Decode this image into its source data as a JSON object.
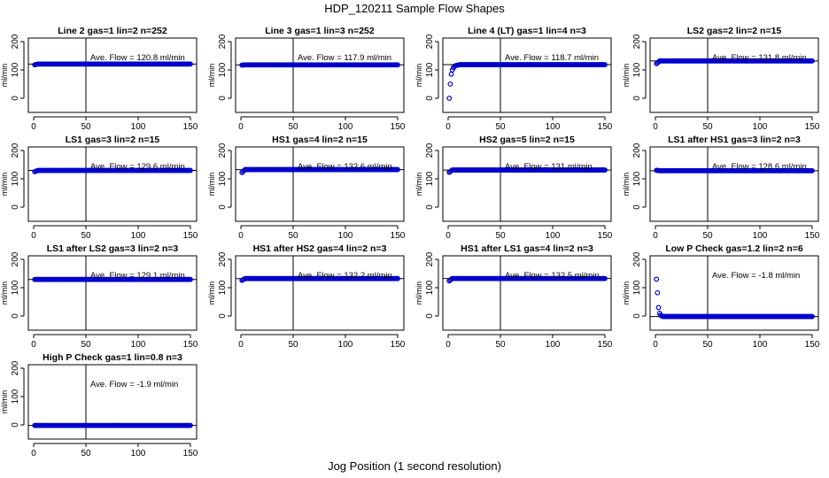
{
  "title": "HDP_120211  Sample Flow Shapes",
  "xlabel": "Jog Position (1 second resolution)",
  "colors": {
    "points": "#0000cc",
    "axis": "#000000"
  },
  "chart_data": [
    {
      "type": "scatter",
      "title": "Line 2 gas=1 lin=2 n=252",
      "ylabel": "ml/min",
      "xlim": [
        0,
        150
      ],
      "ylim": [
        0,
        200
      ],
      "xticks": [
        0,
        50,
        100,
        150
      ],
      "yticks": [
        0,
        100,
        200
      ],
      "grid": false,
      "vline_x": 50,
      "mean": 120.8,
      "annotation": "Ave. Flow =  120.8  ml/min",
      "start": [
        1,
        118
      ],
      "end": [
        150,
        120.8
      ]
    },
    {
      "type": "scatter",
      "title": "Line 3 gas=1 lin=3 n=252",
      "ylabel": "ml/min",
      "xlim": [
        0,
        150
      ],
      "ylim": [
        0,
        200
      ],
      "xticks": [
        0,
        50,
        100,
        150
      ],
      "yticks": [
        0,
        100,
        200
      ],
      "grid": false,
      "vline_x": 50,
      "mean": 117.9,
      "annotation": "Ave. Flow =  117.9  ml/min",
      "start": [
        1,
        117
      ],
      "end": [
        150,
        117.9
      ]
    },
    {
      "type": "scatter",
      "title": "Line 4 (LT) gas=1 lin=4 n=3",
      "ylabel": "ml/min",
      "xlim": [
        0,
        150
      ],
      "ylim": [
        0,
        200
      ],
      "xticks": [
        0,
        50,
        100,
        150
      ],
      "yticks": [
        0,
        100,
        200
      ],
      "grid": false,
      "vline_x": 50,
      "mean": 118.7,
      "annotation": "Ave. Flow =  118.7  ml/min",
      "start": [
        1,
        0
      ],
      "end": [
        150,
        118.7
      ],
      "transient": [
        [
          1,
          0
        ],
        [
          2,
          50
        ],
        [
          3,
          85
        ],
        [
          4,
          100
        ],
        [
          5,
          108
        ],
        [
          6,
          112
        ],
        [
          7,
          115
        ],
        [
          8,
          116
        ],
        [
          9,
          117
        ],
        [
          10,
          117.5
        ]
      ]
    },
    {
      "type": "scatter",
      "title": "LS2 gas=2 lin=2 n=15",
      "ylabel": "ml/min",
      "xlim": [
        0,
        150
      ],
      "ylim": [
        0,
        200
      ],
      "xticks": [
        0,
        50,
        100,
        150
      ],
      "yticks": [
        0,
        100,
        200
      ],
      "grid": false,
      "vline_x": 50,
      "mean": 131.8,
      "annotation": "Ave. Flow =  131.8  ml/min",
      "start": [
        1,
        122
      ],
      "end": [
        150,
        131.8
      ]
    },
    {
      "type": "scatter",
      "title": "LS1 gas=3 lin=2 n=15",
      "ylabel": "ml/min",
      "xlim": [
        0,
        150
      ],
      "ylim": [
        0,
        200
      ],
      "xticks": [
        0,
        50,
        100,
        150
      ],
      "yticks": [
        0,
        100,
        200
      ],
      "grid": false,
      "vline_x": 50,
      "mean": 129.6,
      "annotation": "Ave. Flow =  129.6  ml/min",
      "start": [
        1,
        125
      ],
      "end": [
        150,
        129.6
      ]
    },
    {
      "type": "scatter",
      "title": "HS1 gas=4 lin=2 n=15",
      "ylabel": "ml/min",
      "xlim": [
        0,
        150
      ],
      "ylim": [
        0,
        200
      ],
      "xticks": [
        0,
        50,
        100,
        150
      ],
      "yticks": [
        0,
        100,
        200
      ],
      "grid": false,
      "vline_x": 50,
      "mean": 132.6,
      "annotation": "Ave. Flow =  132.6  ml/min",
      "start": [
        1,
        122
      ],
      "end": [
        150,
        132.6
      ]
    },
    {
      "type": "scatter",
      "title": "HS2 gas=5 lin=2 n=15",
      "ylabel": "ml/min",
      "xlim": [
        0,
        150
      ],
      "ylim": [
        0,
        200
      ],
      "xticks": [
        0,
        50,
        100,
        150
      ],
      "yticks": [
        0,
        100,
        200
      ],
      "grid": false,
      "vline_x": 50,
      "mean": 131,
      "annotation": "Ave. Flow =  131  ml/min",
      "start": [
        1,
        123
      ],
      "end": [
        150,
        131
      ]
    },
    {
      "type": "scatter",
      "title": "LS1 after HS1 gas=3 lin=2 n=3",
      "ylabel": "ml/min",
      "xlim": [
        0,
        150
      ],
      "ylim": [
        0,
        200
      ],
      "xticks": [
        0,
        50,
        100,
        150
      ],
      "yticks": [
        0,
        100,
        200
      ],
      "grid": false,
      "vline_x": 50,
      "mean": 128.6,
      "annotation": "Ave. Flow =  128.6  ml/min",
      "start": [
        1,
        130
      ],
      "end": [
        150,
        128.6
      ]
    },
    {
      "type": "scatter",
      "title": "LS1 after LS2 gas=3 lin=2 n=3",
      "ylabel": "ml/min",
      "xlim": [
        0,
        150
      ],
      "ylim": [
        0,
        200
      ],
      "xticks": [
        0,
        50,
        100,
        150
      ],
      "yticks": [
        0,
        100,
        200
      ],
      "grid": false,
      "vline_x": 50,
      "mean": 129.1,
      "annotation": "Ave. Flow =  129.1  ml/min",
      "start": [
        1,
        129
      ],
      "end": [
        150,
        129.1
      ]
    },
    {
      "type": "scatter",
      "title": "HS1 after HS2 gas=4 lin=2 n=3",
      "ylabel": "ml/min",
      "xlim": [
        0,
        150
      ],
      "ylim": [
        0,
        200
      ],
      "xticks": [
        0,
        50,
        100,
        150
      ],
      "yticks": [
        0,
        100,
        200
      ],
      "grid": false,
      "vline_x": 50,
      "mean": 132.2,
      "annotation": "Ave. Flow =  132.2  ml/min",
      "start": [
        1,
        126
      ],
      "end": [
        150,
        132.2
      ]
    },
    {
      "type": "scatter",
      "title": "HS1 after LS1 gas=4 lin=2 n=3",
      "ylabel": "ml/min",
      "xlim": [
        0,
        150
      ],
      "ylim": [
        0,
        200
      ],
      "xticks": [
        0,
        50,
        100,
        150
      ],
      "yticks": [
        0,
        100,
        200
      ],
      "grid": false,
      "vline_x": 50,
      "mean": 132.5,
      "annotation": "Ave. Flow =  132.5  ml/min",
      "start": [
        1,
        124
      ],
      "end": [
        150,
        132.5
      ]
    },
    {
      "type": "scatter",
      "title": "Low P Check gas=1.2 lin=2 n=6",
      "ylabel": "ml/min",
      "xlim": [
        0,
        150
      ],
      "ylim": [
        0,
        200
      ],
      "xticks": [
        0,
        50,
        100,
        150
      ],
      "yticks": [
        0,
        100,
        200
      ],
      "grid": false,
      "vline_x": 50,
      "mean": -1.8,
      "annotation": "Ave. Flow =  -1.8  ml/min",
      "start": [
        1,
        130
      ],
      "end": [
        150,
        -1.8
      ],
      "transient": [
        [
          1,
          130
        ],
        [
          2,
          82
        ],
        [
          3,
          30
        ],
        [
          4,
          10
        ],
        [
          5,
          3
        ],
        [
          6,
          0
        ]
      ]
    },
    {
      "type": "scatter",
      "title": "High P Check gas=1 lin=0.8 n=3",
      "ylabel": "ml/min",
      "xlim": [
        0,
        150
      ],
      "ylim": [
        0,
        200
      ],
      "xticks": [
        0,
        50,
        100,
        150
      ],
      "yticks": [
        0,
        100,
        200
      ],
      "grid": false,
      "vline_x": 50,
      "mean": -1.9,
      "annotation": "Ave. Flow =  -1.9  ml/min",
      "start": [
        1,
        -2
      ],
      "end": [
        150,
        -1.9
      ]
    }
  ]
}
